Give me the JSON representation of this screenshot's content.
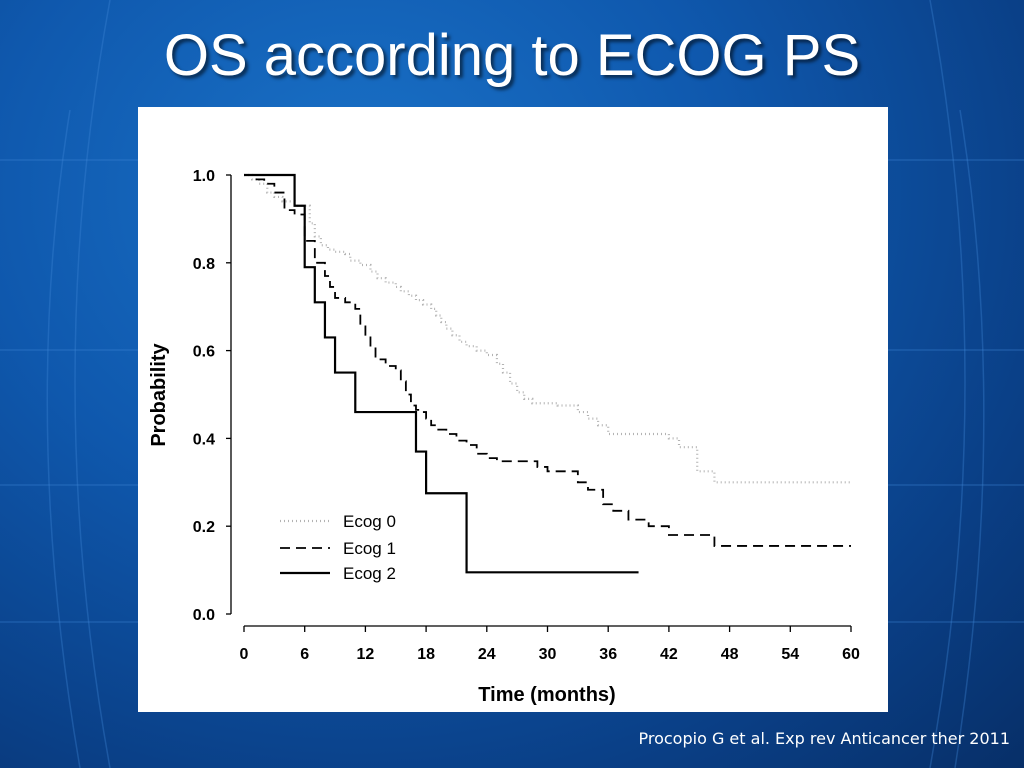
{
  "slide": {
    "title": "OS according to ECOG PS",
    "citation": "Procopio G et al. Exp rev Anticancer ther 2011"
  },
  "colors": {
    "background": "#0f58ad",
    "title_text": "#ffffff",
    "chart_background": "#ffffff",
    "ecog0": "#b0b0b0",
    "ecog1": "#000000",
    "ecog2": "#000000"
  },
  "chart_data": {
    "type": "line",
    "title": "",
    "xlabel": "Time (months)",
    "ylabel": "Probability",
    "xlim": [
      0,
      60
    ],
    "ylim": [
      0,
      1
    ],
    "xticks": [
      "0",
      "6",
      "12",
      "18",
      "24",
      "30",
      "36",
      "42",
      "48",
      "54",
      "60"
    ],
    "yticks": [
      "0.0",
      "0.2",
      "0.4",
      "0.6",
      "0.8",
      "1.0"
    ],
    "grid": false,
    "legend_position": "bottom-left",
    "series": [
      {
        "name": "Ecog 0",
        "style": "dotted",
        "step_points": [
          [
            0,
            1.0
          ],
          [
            0.8,
            0.99
          ],
          [
            1.5,
            0.98
          ],
          [
            2.3,
            0.96
          ],
          [
            3,
            0.95
          ],
          [
            3.8,
            0.94
          ],
          [
            5,
            0.93
          ],
          [
            6.5,
            0.89
          ],
          [
            7,
            0.86
          ],
          [
            7.6,
            0.84
          ],
          [
            8.3,
            0.83
          ],
          [
            9,
            0.825
          ],
          [
            10,
            0.82
          ],
          [
            10.5,
            0.805
          ],
          [
            11.5,
            0.795
          ],
          [
            12.5,
            0.78
          ],
          [
            13.2,
            0.765
          ],
          [
            14,
            0.755
          ],
          [
            15,
            0.745
          ],
          [
            15.5,
            0.735
          ],
          [
            16.3,
            0.725
          ],
          [
            17,
            0.715
          ],
          [
            17.7,
            0.705
          ],
          [
            18.5,
            0.695
          ],
          [
            19,
            0.68
          ],
          [
            19.5,
            0.665
          ],
          [
            20,
            0.65
          ],
          [
            20.6,
            0.635
          ],
          [
            21.3,
            0.62
          ],
          [
            22,
            0.61
          ],
          [
            23,
            0.6
          ],
          [
            24,
            0.59
          ],
          [
            25,
            0.57
          ],
          [
            25.6,
            0.55
          ],
          [
            26.3,
            0.525
          ],
          [
            27,
            0.505
          ],
          [
            27.7,
            0.49
          ],
          [
            28.5,
            0.48
          ],
          [
            31,
            0.475
          ],
          [
            33,
            0.46
          ],
          [
            34,
            0.445
          ],
          [
            35,
            0.43
          ],
          [
            36,
            0.41
          ],
          [
            42,
            0.4
          ],
          [
            43,
            0.38
          ],
          [
            44.8,
            0.325
          ],
          [
            46.5,
            0.3
          ],
          [
            60,
            0.3
          ]
        ]
      },
      {
        "name": "Ecog 1",
        "style": "dashed",
        "step_points": [
          [
            0,
            1.0
          ],
          [
            1,
            0.99
          ],
          [
            2,
            0.98
          ],
          [
            3,
            0.96
          ],
          [
            4,
            0.92
          ],
          [
            5,
            0.91
          ],
          [
            6,
            0.85
          ],
          [
            7,
            0.8
          ],
          [
            8,
            0.77
          ],
          [
            8.5,
            0.745
          ],
          [
            9,
            0.72
          ],
          [
            10,
            0.71
          ],
          [
            11,
            0.695
          ],
          [
            11.5,
            0.655
          ],
          [
            12,
            0.63
          ],
          [
            12.5,
            0.605
          ],
          [
            13,
            0.58
          ],
          [
            14,
            0.565
          ],
          [
            15,
            0.555
          ],
          [
            15.5,
            0.53
          ],
          [
            16,
            0.5
          ],
          [
            16.5,
            0.475
          ],
          [
            17,
            0.465
          ],
          [
            17.5,
            0.46
          ],
          [
            18,
            0.445
          ],
          [
            18.5,
            0.43
          ],
          [
            19,
            0.42
          ],
          [
            20,
            0.41
          ],
          [
            21,
            0.395
          ],
          [
            22,
            0.385
          ],
          [
            23,
            0.365
          ],
          [
            24,
            0.355
          ],
          [
            25,
            0.348
          ],
          [
            29,
            0.335
          ],
          [
            30,
            0.325
          ],
          [
            33,
            0.3
          ],
          [
            34,
            0.283
          ],
          [
            35.5,
            0.25
          ],
          [
            36.5,
            0.235
          ],
          [
            38,
            0.215
          ],
          [
            40,
            0.2
          ],
          [
            42,
            0.18
          ],
          [
            46.5,
            0.155
          ],
          [
            60,
            0.155
          ]
        ]
      },
      {
        "name": "Ecog 2",
        "style": "solid",
        "step_points": [
          [
            0,
            1.0
          ],
          [
            5,
            0.93
          ],
          [
            6,
            0.79
          ],
          [
            7,
            0.71
          ],
          [
            8,
            0.63
          ],
          [
            9,
            0.55
          ],
          [
            11,
            0.46
          ],
          [
            17,
            0.37
          ],
          [
            18,
            0.275
          ],
          [
            22,
            0.095
          ],
          [
            39,
            0.095
          ]
        ]
      }
    ]
  }
}
